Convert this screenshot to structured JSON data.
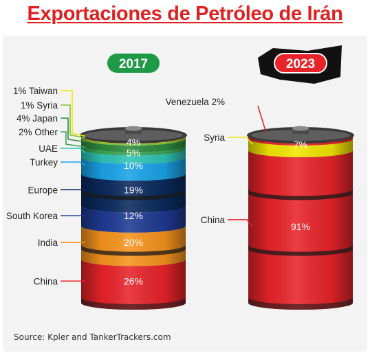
{
  "title": "Exportaciones de Petróleo de Irán",
  "source": "Source: Kpler and TankerTrackers.com",
  "colors": {
    "title": "#e02020",
    "badge_2017": "#1e9a47",
    "badge_2023": "#e8242a"
  },
  "chart_data": [
    {
      "type": "bar",
      "stacked": true,
      "year": "2017",
      "badge": "2017",
      "unit": "%",
      "segments": [
        {
          "name": "China",
          "value": 26,
          "label": "26%",
          "color": "#e8242a"
        },
        {
          "name": "India",
          "value": 20,
          "label": "20%",
          "color": "#f7941d"
        },
        {
          "name": "South Korea",
          "value": 12,
          "label": "12%",
          "color": "#1f3a93"
        },
        {
          "name": "Europe",
          "value": 19,
          "label": "19%",
          "color": "#0b2a5e"
        },
        {
          "name": "Turkey",
          "value": 10,
          "label": "10%",
          "color": "#1aa3e8"
        },
        {
          "name": "UAE",
          "value": 5,
          "label": "5%",
          "color": "#2ec4b6"
        },
        {
          "name": "Other",
          "value": 2,
          "label": "",
          "color": "#3aa655"
        },
        {
          "name": "Japan",
          "value": 4,
          "label": "4%",
          "color": "#2e8b3e"
        },
        {
          "name": "Syria",
          "value": 1,
          "label": "",
          "color": "#7fc241"
        },
        {
          "name": "Taiwan",
          "value": 1,
          "label": "",
          "color": "#f2e600"
        }
      ],
      "left_labels": [
        {
          "segment": "Taiwan",
          "text": "1% Taiwan"
        },
        {
          "segment": "Syria",
          "text": "1%   Syria"
        },
        {
          "segment": "Japan",
          "text": "4%  Japan"
        },
        {
          "segment": "Other",
          "text": "2%  Other"
        },
        {
          "segment": "UAE",
          "text": "UAE"
        },
        {
          "segment": "Turkey",
          "text": "Turkey"
        },
        {
          "segment": "Europe",
          "text": "Europe"
        },
        {
          "segment": "South Korea",
          "text": "South Korea"
        },
        {
          "segment": "India",
          "text": "India"
        },
        {
          "segment": "China",
          "text": "China"
        }
      ]
    },
    {
      "type": "bar",
      "stacked": true,
      "year": "2023",
      "badge": "2023",
      "unit": "%",
      "segments": [
        {
          "name": "China",
          "value": 91,
          "label": "91%",
          "color": "#e8242a"
        },
        {
          "name": "Syria",
          "value": 7,
          "label": "7%",
          "color": "#f2e600"
        },
        {
          "name": "Venezuela",
          "value": 2,
          "label": "",
          "color": "#e8242a"
        }
      ],
      "left_labels": [
        {
          "segment": "Venezuela",
          "text": "Venezuela 2%"
        },
        {
          "segment": "Syria",
          "text": "Syria"
        },
        {
          "segment": "China",
          "text": "China"
        }
      ]
    }
  ]
}
